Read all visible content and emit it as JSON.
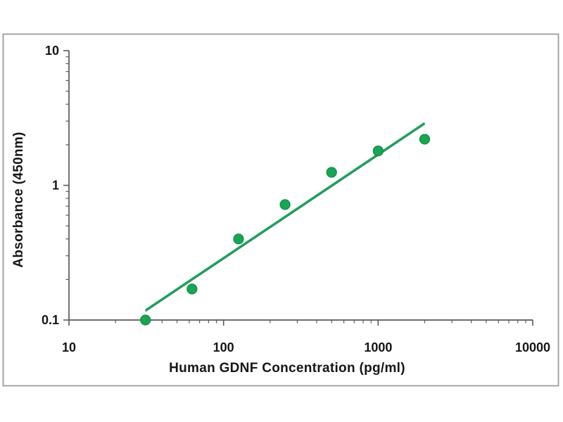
{
  "figure": {
    "background": "#ffffff",
    "frame_color": "#9c9c9c",
    "axis_color": "#5a5a5a",
    "label_color": "#161616"
  },
  "chart_data": {
    "type": "scatter",
    "title": "",
    "xlabel": "Human GDNF Concentration (pg/ml)",
    "ylabel": "Absorbance (450nm)",
    "x_scale": "log",
    "y_scale": "log",
    "xlim": [
      10,
      10000
    ],
    "ylim": [
      0.1,
      10
    ],
    "x_ticks": [
      10,
      100,
      1000,
      10000
    ],
    "y_ticks": [
      0.1,
      1,
      10
    ],
    "grid": false,
    "legend": "none",
    "series": [
      {
        "name": "standard-curve-points",
        "type": "scatter",
        "marker": "circle",
        "color": "#1aa455",
        "edge_color": "#0f8a42",
        "x": [
          31.25,
          62.5,
          125,
          250,
          500,
          1000,
          2000
        ],
        "y": [
          0.1,
          0.17,
          0.4,
          0.72,
          1.25,
          1.8,
          2.2
        ]
      },
      {
        "name": "trend-line",
        "type": "line",
        "color": "#18a55a",
        "shadow_color": "#4b6353",
        "x": [
          31.25,
          2000
        ],
        "y": [
          0.118,
          2.9
        ]
      }
    ]
  }
}
